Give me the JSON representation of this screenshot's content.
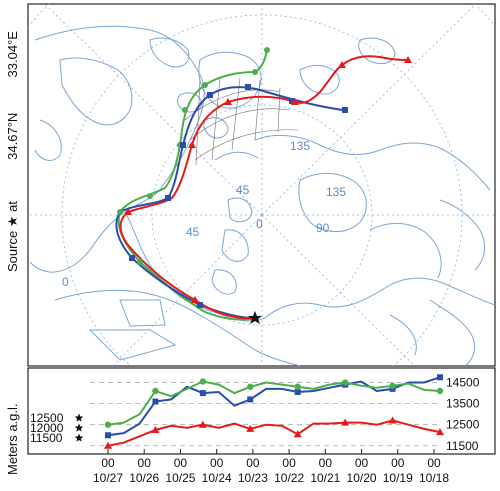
{
  "source": {
    "label": "Source ★ at",
    "lat": "34.67°N",
    "lon": "33.04°E"
  },
  "map": {
    "graticule_labels": [
      "135",
      "135",
      "45",
      "90",
      "0",
      "45",
      "0"
    ],
    "colors": {
      "land": "#7aa7d6",
      "grid": "#8fb3d9",
      "label": "#5b8dc7"
    }
  },
  "chart_data": {
    "type": "line",
    "ylabel": "Meters a.g.l.",
    "x_ticks": [
      {
        "hour": "00",
        "date": "10/27"
      },
      {
        "hour": "00",
        "date": "10/26"
      },
      {
        "hour": "00",
        "date": "10/25"
      },
      {
        "hour": "00",
        "date": "10/24"
      },
      {
        "hour": "00",
        "date": "10/23"
      },
      {
        "hour": "00",
        "date": "10/22"
      },
      {
        "hour": "00",
        "date": "10/21"
      },
      {
        "hour": "00",
        "date": "10/20"
      },
      {
        "hour": "00",
        "date": "10/19"
      },
      {
        "hour": "00",
        "date": "10/18"
      }
    ],
    "right_ticks": [
      "14500",
      "13500",
      "12500",
      "11500"
    ],
    "left_ticks": [
      "12500",
      "12000",
      "11500"
    ],
    "series": [
      {
        "color": "#e41a1c",
        "marker": "triangle",
        "values": [
          11500,
          11650,
          11950,
          12250,
          12450,
          12350,
          12500,
          12350,
          12550,
          12300,
          12500,
          12450,
          12050,
          12550,
          12550,
          12600,
          12600,
          12500,
          12700,
          12500,
          12300,
          12150
        ]
      },
      {
        "color": "#2a4fa8",
        "marker": "square",
        "values": [
          12000,
          12100,
          12550,
          13600,
          13700,
          14300,
          14000,
          14050,
          13400,
          13700,
          14200,
          14200,
          14050,
          14100,
          14250,
          14400,
          14550,
          14100,
          14200,
          14500,
          14500,
          14750
        ]
      },
      {
        "color": "#4daf4a",
        "marker": "circle",
        "values": [
          12500,
          12600,
          13000,
          14100,
          13850,
          14200,
          14550,
          14400,
          14000,
          14300,
          14500,
          14400,
          14300,
          14200,
          14400,
          14500,
          14350,
          14250,
          14350,
          14450,
          14150,
          14100
        ]
      }
    ]
  }
}
